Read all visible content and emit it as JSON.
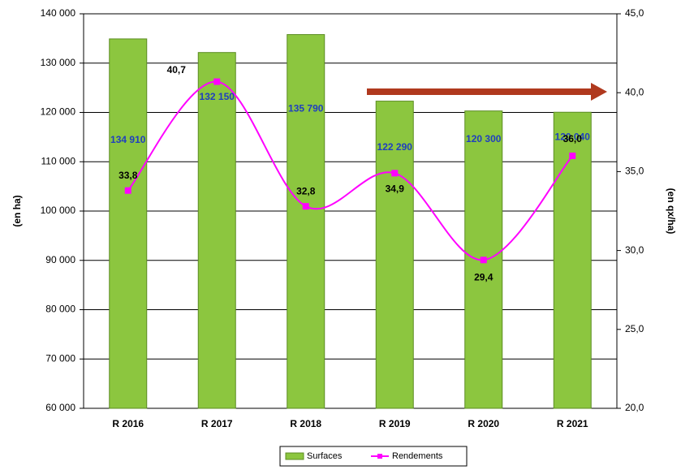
{
  "chart_data": {
    "type": "bar",
    "categories": [
      "R 2016",
      "R 2017",
      "R 2018",
      "R 2019",
      "R 2020",
      "R 2021"
    ],
    "series": [
      {
        "name": "Surfaces",
        "type": "bar",
        "color": "#8cc63f",
        "values": [
          134910,
          132150,
          135790,
          122290,
          120300,
          120040
        ],
        "value_labels": [
          "134 910",
          "132 150",
          "135 790",
          "122 290",
          "120 300",
          "120 040"
        ]
      },
      {
        "name": "Rendements",
        "type": "line",
        "axis": "y2",
        "color": "#ff00ff",
        "values": [
          33.8,
          40.7,
          32.8,
          34.9,
          29.4,
          36.0
        ],
        "value_labels": [
          "33,8",
          "40,7",
          "32,8",
          "34,9",
          "29,4",
          "36,0"
        ]
      }
    ],
    "ylabel": "(en ha)",
    "y2label": "(en qx/ha)",
    "ylim": [
      60000,
      140000
    ],
    "yticks": [
      {
        "value": 60000,
        "label": "60 000"
      },
      {
        "value": 70000,
        "label": "70 000"
      },
      {
        "value": 80000,
        "label": "80 000"
      },
      {
        "value": 90000,
        "label": "90 000"
      },
      {
        "value": 100000,
        "label": "100 000"
      },
      {
        "value": 110000,
        "label": "110 000"
      },
      {
        "value": 120000,
        "label": "120 000"
      },
      {
        "value": 130000,
        "label": "130 000"
      },
      {
        "value": 140000,
        "label": "140 000"
      }
    ],
    "y2lim": [
      20,
      45
    ],
    "y2ticks": [
      {
        "value": 20,
        "label": "20,0"
      },
      {
        "value": 25,
        "label": "25,0"
      },
      {
        "value": 30,
        "label": "30,0"
      },
      {
        "value": 35,
        "label": "35,0"
      },
      {
        "value": 40,
        "label": "40,0"
      },
      {
        "value": 45,
        "label": "45,0"
      }
    ],
    "grid": true,
    "legend": "bottom"
  }
}
